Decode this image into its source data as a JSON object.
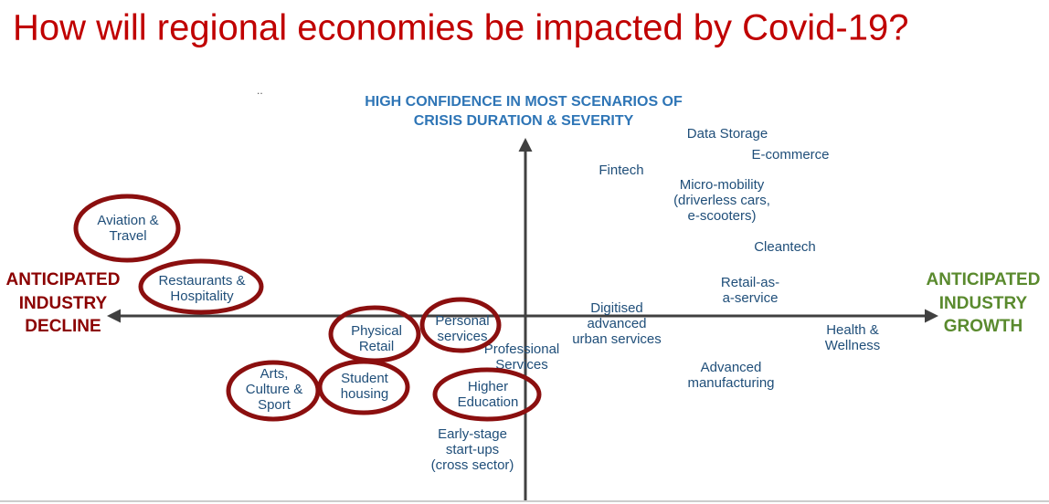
{
  "title": "How will regional economies be impacted by Covid-19?",
  "note": "..",
  "top_label": [
    "HIGH CONFIDENCE IN MOST SCENARIOS OF",
    "CRISIS DURATION & SEVERITY"
  ],
  "left_label": [
    "ANTICIPATED",
    "INDUSTRY",
    "DECLINE"
  ],
  "right_label": [
    "ANTICIPATED",
    "INDUSTRY",
    "GROWTH"
  ],
  "items": [
    {
      "lines": [
        "Data Storage"
      ],
      "circled": false
    },
    {
      "lines": [
        "E-commerce"
      ],
      "circled": false
    },
    {
      "lines": [
        "Fintech"
      ],
      "circled": false
    },
    {
      "lines": [
        "Micro-mobility",
        "(driverless cars,",
        "e-scooters)"
      ],
      "circled": false
    },
    {
      "lines": [
        "Cleantech"
      ],
      "circled": false
    },
    {
      "lines": [
        "Retail-as-",
        "a-service"
      ],
      "circled": false
    },
    {
      "lines": [
        "Digitised",
        "advanced",
        "urban services"
      ],
      "circled": false
    },
    {
      "lines": [
        "Health &",
        "Wellness"
      ],
      "circled": false
    },
    {
      "lines": [
        "Advanced",
        "manufacturing"
      ],
      "circled": false
    },
    {
      "lines": [
        "Professional",
        "Services"
      ],
      "circled": false
    },
    {
      "lines": [
        "Early-stage",
        "start-ups",
        "(cross sector)"
      ],
      "circled": false
    },
    {
      "lines": [
        "Aviation &",
        "Travel"
      ],
      "circled": true
    },
    {
      "lines": [
        "Restaurants &",
        "Hospitality"
      ],
      "circled": true
    },
    {
      "lines": [
        "Physical",
        "Retail"
      ],
      "circled": true
    },
    {
      "lines": [
        "Personal",
        "services"
      ],
      "circled": true
    },
    {
      "lines": [
        "Arts,",
        "Culture &",
        "Sport"
      ],
      "circled": true
    },
    {
      "lines": [
        "Student",
        "housing"
      ],
      "circled": true
    },
    {
      "lines": [
        "Higher",
        "Education"
      ],
      "circled": true
    }
  ]
}
